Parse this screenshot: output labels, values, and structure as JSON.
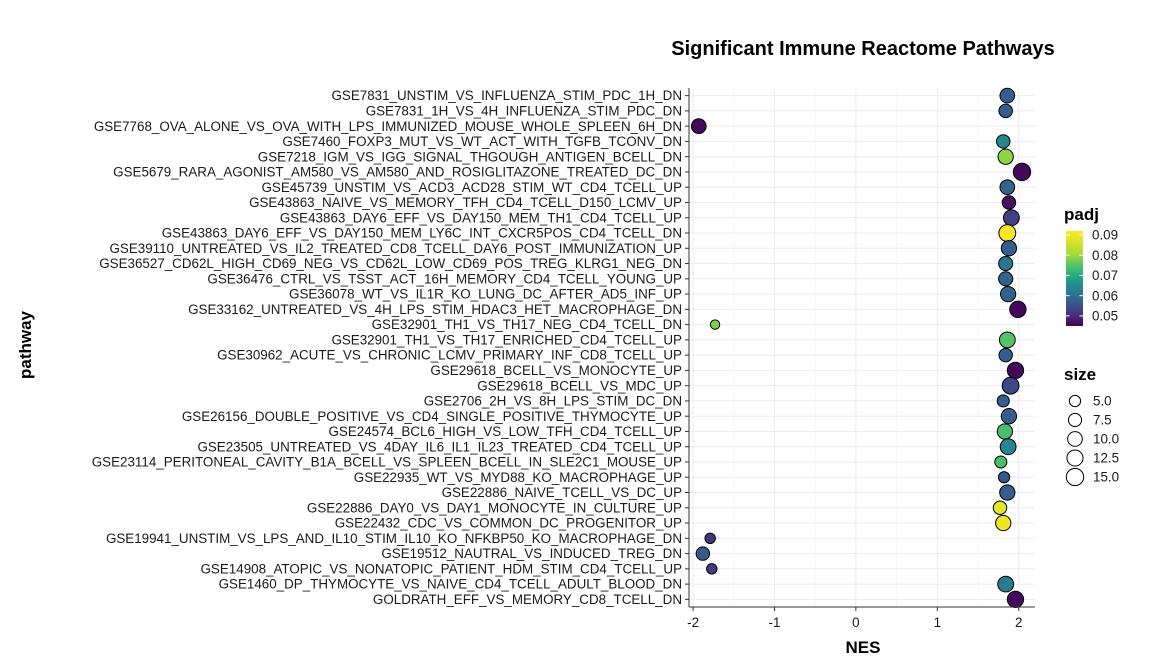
{
  "chart_data": {
    "type": "scatter",
    "title": "Significant Immune Reactome Pathways",
    "xlabel": "NES",
    "ylabel": "pathway",
    "xlim": [
      -2.05,
      2.2
    ],
    "xticks": [
      -2,
      -1,
      0,
      1,
      2
    ],
    "xtick_labels": [
      "-2",
      "-1",
      "0",
      "1",
      "2"
    ],
    "grid": true,
    "legend_position": "right",
    "color_legend": {
      "title": "padj",
      "range": [
        0.045,
        0.092
      ],
      "ticks": [
        0.09,
        0.08,
        0.07,
        0.06,
        0.05
      ],
      "tick_labels": [
        "0.09",
        "0.08",
        "0.07",
        "0.06",
        "0.05"
      ],
      "palette": "viridis"
    },
    "size_legend": {
      "title": "size",
      "values": [
        5.0,
        7.5,
        10.0,
        12.5,
        15.0
      ],
      "labels": [
        "5.0",
        "7.5",
        "10.0",
        "12.5",
        "15.0"
      ]
    },
    "points": [
      {
        "pathway": "GSE7831_UNSTIM_VS_INFLUENZA_STIM_PDC_1H_DN",
        "nes": 1.86,
        "padj": 0.057,
        "size": 10
      },
      {
        "pathway": "GSE7831_1H_VS_4H_INFLUENZA_STIM_PDC_DN",
        "nes": 1.84,
        "padj": 0.057,
        "size": 8
      },
      {
        "pathway": "GSE7768_OVA_ALONE_VS_OVA_WITH_LPS_IMMUNIZED_MOUSE_WHOLE_SPLEEN_6H_DN",
        "nes": -1.93,
        "padj": 0.046,
        "size": 10
      },
      {
        "pathway": "GSE7460_FOXP3_MUT_VS_WT_ACT_WITH_TGFB_TCONV_DN",
        "nes": 1.81,
        "padj": 0.064,
        "size": 8
      },
      {
        "pathway": "GSE7218_IGM_VS_IGG_SIGNAL_THGOUGH_ANTIGEN_BCELL_DN",
        "nes": 1.84,
        "padj": 0.079,
        "size": 11
      },
      {
        "pathway": "GSE5679_RARA_AGONIST_AM580_VS_AM580_AND_ROSIGLITAZONE_TREATED_DC_DN",
        "nes": 2.04,
        "padj": 0.046,
        "size": 15
      },
      {
        "pathway": "GSE45739_UNSTIM_VS_ACD3_ACD28_STIM_WT_CD4_TCELL_UP",
        "nes": 1.86,
        "padj": 0.058,
        "size": 10
      },
      {
        "pathway": "GSE43863_NAIVE_VS_MEMORY_TFH_CD4_TCELL_D150_LCMV_UP",
        "nes": 1.88,
        "padj": 0.047,
        "size": 8
      },
      {
        "pathway": "GSE43863_DAY6_EFF_VS_DAY150_MEM_TH1_CD4_TCELL_UP",
        "nes": 1.91,
        "padj": 0.053,
        "size": 12
      },
      {
        "pathway": "GSE43863_DAY6_EFF_VS_DAY150_MEM_LY6C_INT_CXCR5POS_CD4_TCELL_DN",
        "nes": 1.86,
        "padj": 0.091,
        "size": 14
      },
      {
        "pathway": "GSE39110_UNTREATED_VS_IL2_TREATED_CD8_TCELL_DAY6_POST_IMMUNIZATION_UP",
        "nes": 1.88,
        "padj": 0.057,
        "size": 11
      },
      {
        "pathway": "GSE36527_CD62L_HIGH_CD69_NEG_VS_CD62L_LOW_CD69_POS_TREG_KLRG1_NEG_DN",
        "nes": 1.84,
        "padj": 0.061,
        "size": 9
      },
      {
        "pathway": "GSE36476_CTRL_VS_TSST_ACT_16H_MEMORY_CD4_TCELL_YOUNG_UP",
        "nes": 1.84,
        "padj": 0.058,
        "size": 9
      },
      {
        "pathway": "GSE36078_WT_VS_IL1R_KO_LUNG_DC_AFTER_AD5_INF_UP",
        "nes": 1.87,
        "padj": 0.058,
        "size": 11
      },
      {
        "pathway": "GSE33162_UNTREATED_VS_4H_LPS_STIM_HDAC3_HET_MACROPHAGE_DN",
        "nes": 1.99,
        "padj": 0.046,
        "size": 13
      },
      {
        "pathway": "GSE32901_TH1_VS_TH17_NEG_CD4_TCELL_DN",
        "nes": -1.73,
        "padj": 0.078,
        "size": 3
      },
      {
        "pathway": "GSE32901_TH1_VS_TH17_ENRICHED_CD4_TCELL_UP",
        "nes": 1.86,
        "padj": 0.075,
        "size": 12
      },
      {
        "pathway": "GSE30962_ACUTE_VS_CHRONIC_LCMV_PRIMARY_INF_CD8_TCELL_UP",
        "nes": 1.84,
        "padj": 0.057,
        "size": 8
      },
      {
        "pathway": "GSE29618_BCELL_VS_MONOCYTE_UP",
        "nes": 1.96,
        "padj": 0.046,
        "size": 13
      },
      {
        "pathway": "GSE29618_BCELL_VS_MDC_UP",
        "nes": 1.9,
        "padj": 0.054,
        "size": 14
      },
      {
        "pathway": "GSE2706_2H_VS_8H_LPS_STIM_DC_DN",
        "nes": 1.81,
        "padj": 0.057,
        "size": 6
      },
      {
        "pathway": "GSE26156_DOUBLE_POSITIVE_VS_CD4_SINGLE_POSITIVE_THYMOCYTE_UP",
        "nes": 1.88,
        "padj": 0.057,
        "size": 11
      },
      {
        "pathway": "GSE24574_BCL6_HIGH_VS_LOW_TFH_CD4_TCELL_UP",
        "nes": 1.83,
        "padj": 0.074,
        "size": 11
      },
      {
        "pathway": "GSE23505_UNTREATED_VS_4DAY_IL6_IL1_IL23_TREATED_CD4_TCELL_UP",
        "nes": 1.87,
        "padj": 0.064,
        "size": 12
      },
      {
        "pathway": "GSE23114_PERITONEAL_CAVITY_B1A_BCELL_VS_SPLEEN_BCELL_IN_SLE2C1_MOUSE_UP",
        "nes": 1.78,
        "padj": 0.074,
        "size": 6
      },
      {
        "pathway": "GSE22935_WT_VS_MYD88_KO_MACROPHAGE_UP",
        "nes": 1.82,
        "padj": 0.056,
        "size": 5
      },
      {
        "pathway": "GSE22886_NAIVE_TCELL_VS_DC_UP",
        "nes": 1.86,
        "padj": 0.057,
        "size": 11
      },
      {
        "pathway": "GSE22886_DAY0_VS_DAY1_MONOCYTE_IN_CULTURE_UP",
        "nes": 1.77,
        "padj": 0.088,
        "size": 8
      },
      {
        "pathway": "GSE22432_CDC_VS_COMMON_DC_PROGENITOR_UP",
        "nes": 1.81,
        "padj": 0.09,
        "size": 11
      },
      {
        "pathway": "GSE19941_UNSTIM_VS_LPS_AND_IL10_STIM_IL10_KO_NFKBP50_KO_MACROPHAGE_DN",
        "nes": -1.79,
        "padj": 0.051,
        "size": 4
      },
      {
        "pathway": "GSE19512_NAUTRAL_VS_INDUCED_TREG_DN",
        "nes": -1.88,
        "padj": 0.056,
        "size": 8
      },
      {
        "pathway": "GSE14908_ATOPIC_VS_NONATOPIC_PATIENT_HDM_STIM_CD4_TCELL_UP",
        "nes": -1.77,
        "padj": 0.052,
        "size": 4
      },
      {
        "pathway": "GSE1460_DP_THYMOCYTE_VS_NAIVE_CD4_TCELL_ADULT_BLOOD_DN",
        "nes": 1.84,
        "padj": 0.062,
        "size": 12
      },
      {
        "pathway": "GOLDRATH_EFF_VS_MEMORY_CD8_TCELL_DN",
        "nes": 1.96,
        "padj": 0.046,
        "size": 13
      }
    ]
  }
}
